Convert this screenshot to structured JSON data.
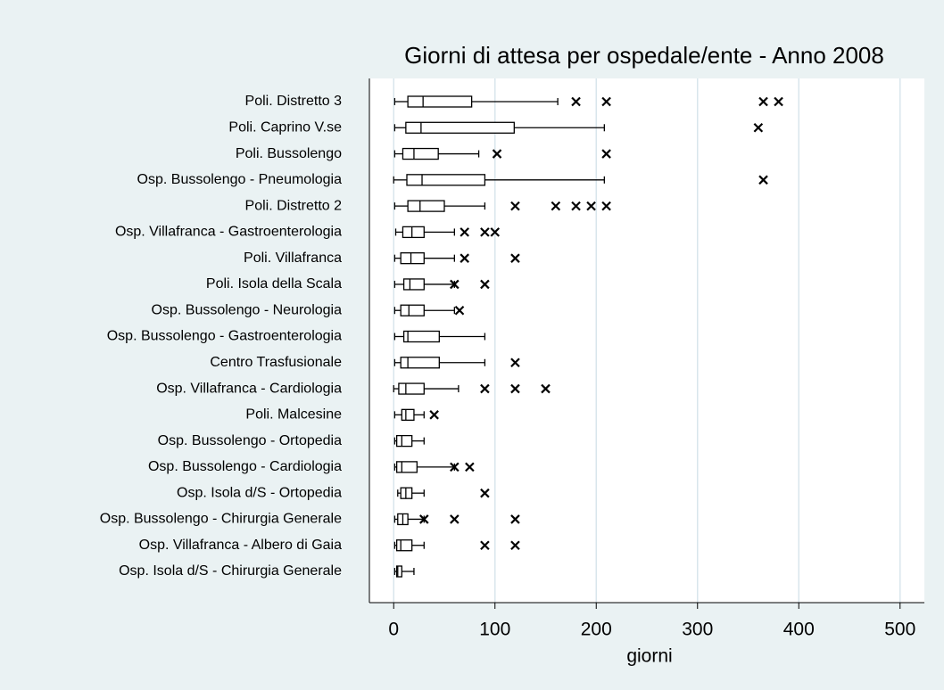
{
  "chart_data": {
    "type": "boxplot",
    "title": "Giorni di attesa per ospedale/ente - Anno 2008",
    "x_label": "giorni",
    "categories": [
      "Poli. Distretto 3",
      "Poli. Caprino V.se",
      "Poli. Bussolengo",
      "Osp. Bussolengo - Pneumologia",
      "Poli. Distretto 2",
      "Osp. Villafranca - Gastroenterologia",
      "Poli. Villafranca",
      "Poli. Isola della Scala",
      "Osp. Bussolengo - Neurologia",
      "Osp. Bussolengo - Gastroenterologia",
      "Centro Trasfusionale",
      "Osp. Villafranca - Cardiologia",
      "Poli. Malcesine",
      "Osp. Bussolengo - Ortopedia",
      "Osp. Bussolengo - Cardiologia",
      "Osp. Isola d/S - Ortopedia",
      "Osp. Bussolengo - Chirurgia Generale",
      "Osp. Villafranca - Albero di Gaia",
      "Osp. Isola d/S - Chirurgia Generale"
    ],
    "boxes": [
      {
        "whisker_low": 1,
        "q1": 14,
        "median": 29,
        "q3": 77,
        "whisker_high": 162,
        "outliers": [
          180,
          210,
          365,
          380
        ]
      },
      {
        "whisker_low": 1,
        "q1": 12,
        "median": 27,
        "q3": 119,
        "whisker_high": 208,
        "outliers": [
          360
        ]
      },
      {
        "whisker_low": 1,
        "q1": 9,
        "median": 20,
        "q3": 44,
        "whisker_high": 84,
        "outliers": [
          102,
          210
        ]
      },
      {
        "whisker_low": 0,
        "q1": 13,
        "median": 28,
        "q3": 90,
        "whisker_high": 208,
        "outliers": [
          365
        ]
      },
      {
        "whisker_low": 1,
        "q1": 14,
        "median": 26,
        "q3": 50,
        "whisker_high": 90,
        "outliers": [
          120,
          160,
          180,
          195,
          210
        ]
      },
      {
        "whisker_low": 2,
        "q1": 9,
        "median": 18,
        "q3": 30,
        "whisker_high": 60,
        "outliers": [
          70,
          90,
          100
        ]
      },
      {
        "whisker_low": 1,
        "q1": 7,
        "median": 17,
        "q3": 30,
        "whisker_high": 60,
        "outliers": [
          70,
          120
        ]
      },
      {
        "whisker_low": 1,
        "q1": 10,
        "median": 16,
        "q3": 30,
        "whisker_high": 60,
        "outliers": [
          60,
          90
        ]
      },
      {
        "whisker_low": 1,
        "q1": 7,
        "median": 15,
        "q3": 30,
        "whisker_high": 60,
        "outliers": [
          65
        ]
      },
      {
        "whisker_low": 1,
        "q1": 10,
        "median": 14,
        "q3": 45,
        "whisker_high": 90,
        "outliers": []
      },
      {
        "whisker_low": 1,
        "q1": 7,
        "median": 14,
        "q3": 45,
        "whisker_high": 90,
        "outliers": [
          120
        ]
      },
      {
        "whisker_low": 0,
        "q1": 5,
        "median": 12,
        "q3": 30,
        "whisker_high": 64,
        "outliers": [
          90,
          120,
          150
        ]
      },
      {
        "whisker_low": 1,
        "q1": 8,
        "median": 12,
        "q3": 20,
        "whisker_high": 30,
        "outliers": [
          40
        ]
      },
      {
        "whisker_low": 1,
        "q1": 3,
        "median": 8,
        "q3": 18,
        "whisker_high": 30,
        "outliers": []
      },
      {
        "whisker_low": 1,
        "q1": 3,
        "median": 8,
        "q3": 23,
        "whisker_high": 60,
        "outliers": [
          60,
          75
        ]
      },
      {
        "whisker_low": 4,
        "q1": 7,
        "median": 12,
        "q3": 18,
        "whisker_high": 30,
        "outliers": [
          90
        ]
      },
      {
        "whisker_low": 1,
        "q1": 4,
        "median": 9,
        "q3": 14,
        "whisker_high": 30,
        "outliers": [
          30,
          60,
          120
        ]
      },
      {
        "whisker_low": 1,
        "q1": 3,
        "median": 7,
        "q3": 18,
        "whisker_high": 30,
        "outliers": [
          90,
          120
        ]
      },
      {
        "whisker_low": 1,
        "q1": 3,
        "median": 4,
        "q3": 8,
        "whisker_high": 20,
        "outliers": []
      }
    ],
    "xlim": [
      -24,
      524
    ],
    "xticks": [
      0,
      100,
      200,
      300,
      400,
      500
    ],
    "grid": true,
    "color": "#000000",
    "grid_color": "#d9e6ec"
  }
}
